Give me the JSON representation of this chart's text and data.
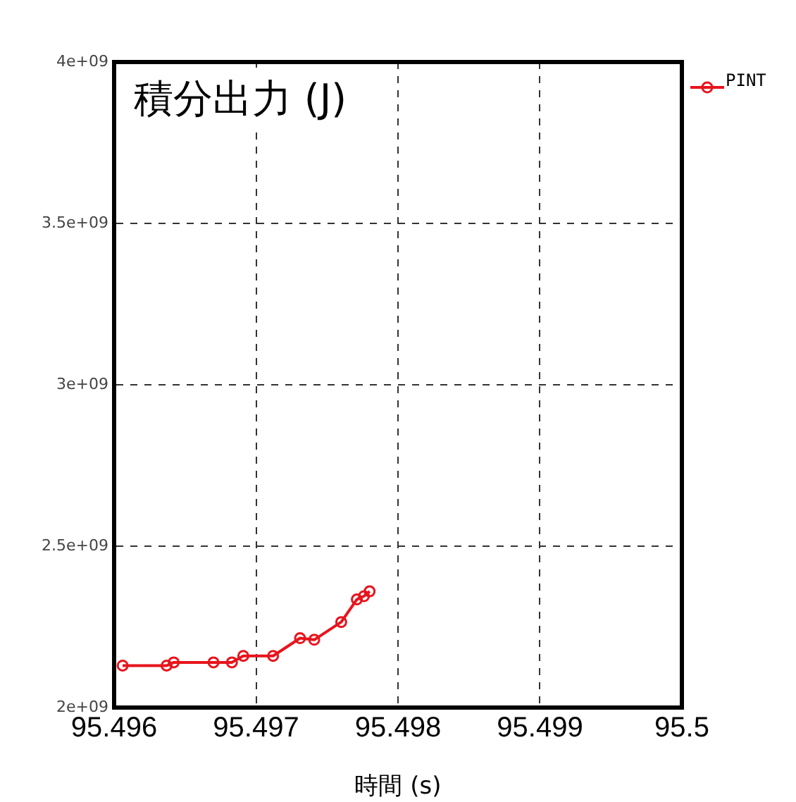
{
  "chart_data": {
    "type": "line",
    "title": "積分出力 (J)",
    "xlabel": "時間 (s)",
    "xlim": [
      95.496,
      95.5
    ],
    "xticks": [
      95.496,
      95.497,
      95.498,
      95.499,
      95.5
    ],
    "ylim": [
      2000000000,
      4000000000
    ],
    "yticks": [
      {
        "value": 2000000000,
        "label": "2e+09"
      },
      {
        "value": 2500000000,
        "label": "2.5e+09"
      },
      {
        "value": 3000000000,
        "label": "3e+09"
      },
      {
        "value": 3500000000,
        "label": "3.5e+09"
      },
      {
        "value": 4000000000,
        "label": "4e+09"
      }
    ],
    "grid": true,
    "legend": "top right",
    "marker": "circle",
    "line_style": "solid",
    "series": [
      {
        "name": "PINT",
        "color": "#e8141c",
        "x": [
          95.49606,
          95.49637,
          95.49642,
          95.4967,
          95.49683,
          95.49691,
          95.49712,
          95.49731,
          95.49741,
          95.4976,
          95.49771,
          95.49776,
          95.4978
        ],
        "values": [
          2130000000,
          2130000000,
          2140000000,
          2140000000,
          2140000000,
          2160000000,
          2160000000,
          2215000000,
          2210000000,
          2265000000,
          2335000000,
          2345000000,
          2360000000
        ]
      }
    ]
  }
}
